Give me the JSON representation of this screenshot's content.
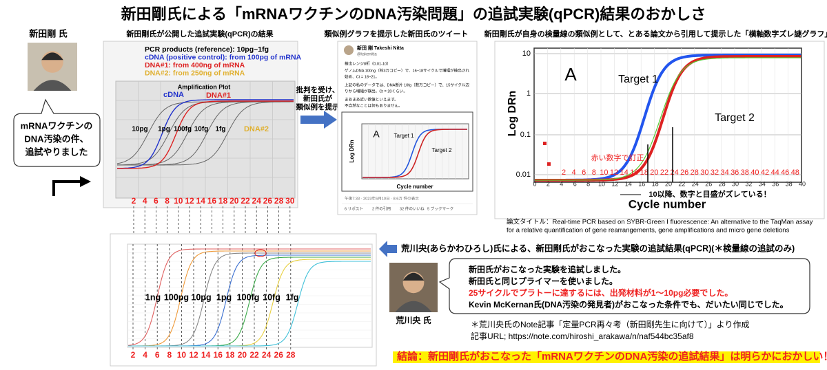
{
  "header": {
    "title": "新田剛氏による「mRNAワクチンのDNA汚染問題」の追試実験(qPCR)結果のおかしさ"
  },
  "nitta": {
    "name": "新田剛 氏",
    "bubble": [
      "mRNAワクチンの",
      "DNA汚染の件、",
      "追試やりました"
    ]
  },
  "panel1": {
    "caption": "新田剛氏が公開した追試実験(qPCR)の結果",
    "legend": [
      "PCR products (reference): 10pg~1fg",
      "cDNA (positive control): from 100pg of mRNA",
      "DNA#1: from 400ng of mRNA",
      "DNA#2: from 250ng of mRNA"
    ],
    "plot_title": "Amplification Plot",
    "labels": [
      "cDNA",
      "DNA#1",
      "DNA#2"
    ],
    "dilutions": [
      "10pg",
      "1pg",
      "100fg",
      "10fg",
      "1fg"
    ],
    "cycles": [
      2,
      4,
      6,
      8,
      10,
      12,
      14,
      16,
      18,
      20,
      22,
      24,
      26,
      28,
      30
    ]
  },
  "transition": {
    "text": [
      "批判を受け、",
      "新田氏が",
      "類似例を提示"
    ]
  },
  "panel2": {
    "caption": "類似例グラフを提示した新田氏のツイート",
    "author": "新田 剛 Takeshi Nitta",
    "handle": "@takenitta",
    "tweet": [
      "検出レンジ8桁（0.01-10）",
      "ゲノムDNA 100ng（約3万コピー）で、16~18サイクルで増幅が検出され",
      "始め、Ct = 18~21。",
      "上記の私のデータでは、DNA断片 10fg（数万コピー）で、15サイクル辺",
      "りから増幅が検出。Ct = 20くらい。",
      "まあまあ近い数値といえます。",
      "不自然なことは何もありません。"
    ],
    "chart": {
      "panel": "A",
      "series": [
        "Target 1",
        "Target 2"
      ],
      "ylabel": "Log DRn",
      "xlabel": "Cycle number"
    },
    "timestamp": "午後7:33 · 2023年6月10日 · 8.6万 件の表示",
    "stats": [
      "6 リポスト",
      "2 件の引用",
      "32 件のいいね",
      "5 ブックマーク"
    ]
  },
  "panel3": {
    "caption": "新田剛氏が自身の検量線の類似例として、とある論文から引用して提示した「横軸数字ズレ謎グラフ」",
    "chart": {
      "panel": "A",
      "series": [
        "Target 1",
        "Target 2"
      ],
      "ylabel": "Log DRn",
      "xlabel": "Cycle number",
      "yticks": [
        "10",
        "1",
        "0.1",
        "0.01"
      ],
      "xticks": [
        0,
        2,
        4,
        6,
        8,
        10,
        12,
        14,
        16,
        18,
        20,
        22,
        24,
        26,
        28,
        30,
        32,
        34,
        36,
        38,
        40
      ]
    },
    "correction": "赤い数字で訂正",
    "red_cycles": [
      2,
      4,
      6,
      8,
      10,
      12,
      14,
      16,
      18,
      20,
      22,
      24,
      26,
      28,
      30,
      32,
      34,
      36,
      38,
      40,
      42,
      44,
      46,
      48
    ],
    "note": "10以降、数字と目盛がズレている！",
    "citation": [
      "論文タイトル：Real-time PCR based on SYBR-Green I fluorescence: An alternative to the TaqMan assay",
      "for a relative quantification of gene rearrangements, gene amplifications and micro gene deletions"
    ]
  },
  "panel4": {
    "heading": "荒川央(あらかわひろし)氏による、新田剛氏がおこなった実験の追試結果(qPCR)(＊検量線の追試のみ)",
    "dilutions": [
      "1ng",
      "100pg",
      "10pg",
      "1pg",
      "100fg",
      "10fg",
      "1fg"
    ],
    "cycles": [
      2,
      4,
      6,
      8,
      10,
      12,
      14,
      16,
      18,
      20,
      22,
      24,
      26,
      28
    ]
  },
  "arakawa": {
    "name": "荒川央 氏",
    "bubble": [
      "新田氏がおこなった実験を追試しました。",
      "新田氏と同じプライマーを使いました。",
      "25サイクルでプラトーに達するには、出発材料が1～10pg必要でした。",
      "Kevin McKernan氏(DNA汚染の発見者)がおこなった条件でも、だいたい同じでした。"
    ],
    "note": [
      "＊荒川央氏のNote記事「定量PCR再々考（新田剛先生に向けて）」より作成",
      "記事URL; https://note.com/hiroshi_arakawa/n/naf544bc35af8"
    ]
  },
  "conclusion": "結論：新田剛氏がおこなった「mRNAワクチンのDNA汚染の追試結果」は明らかにおかしい！"
}
